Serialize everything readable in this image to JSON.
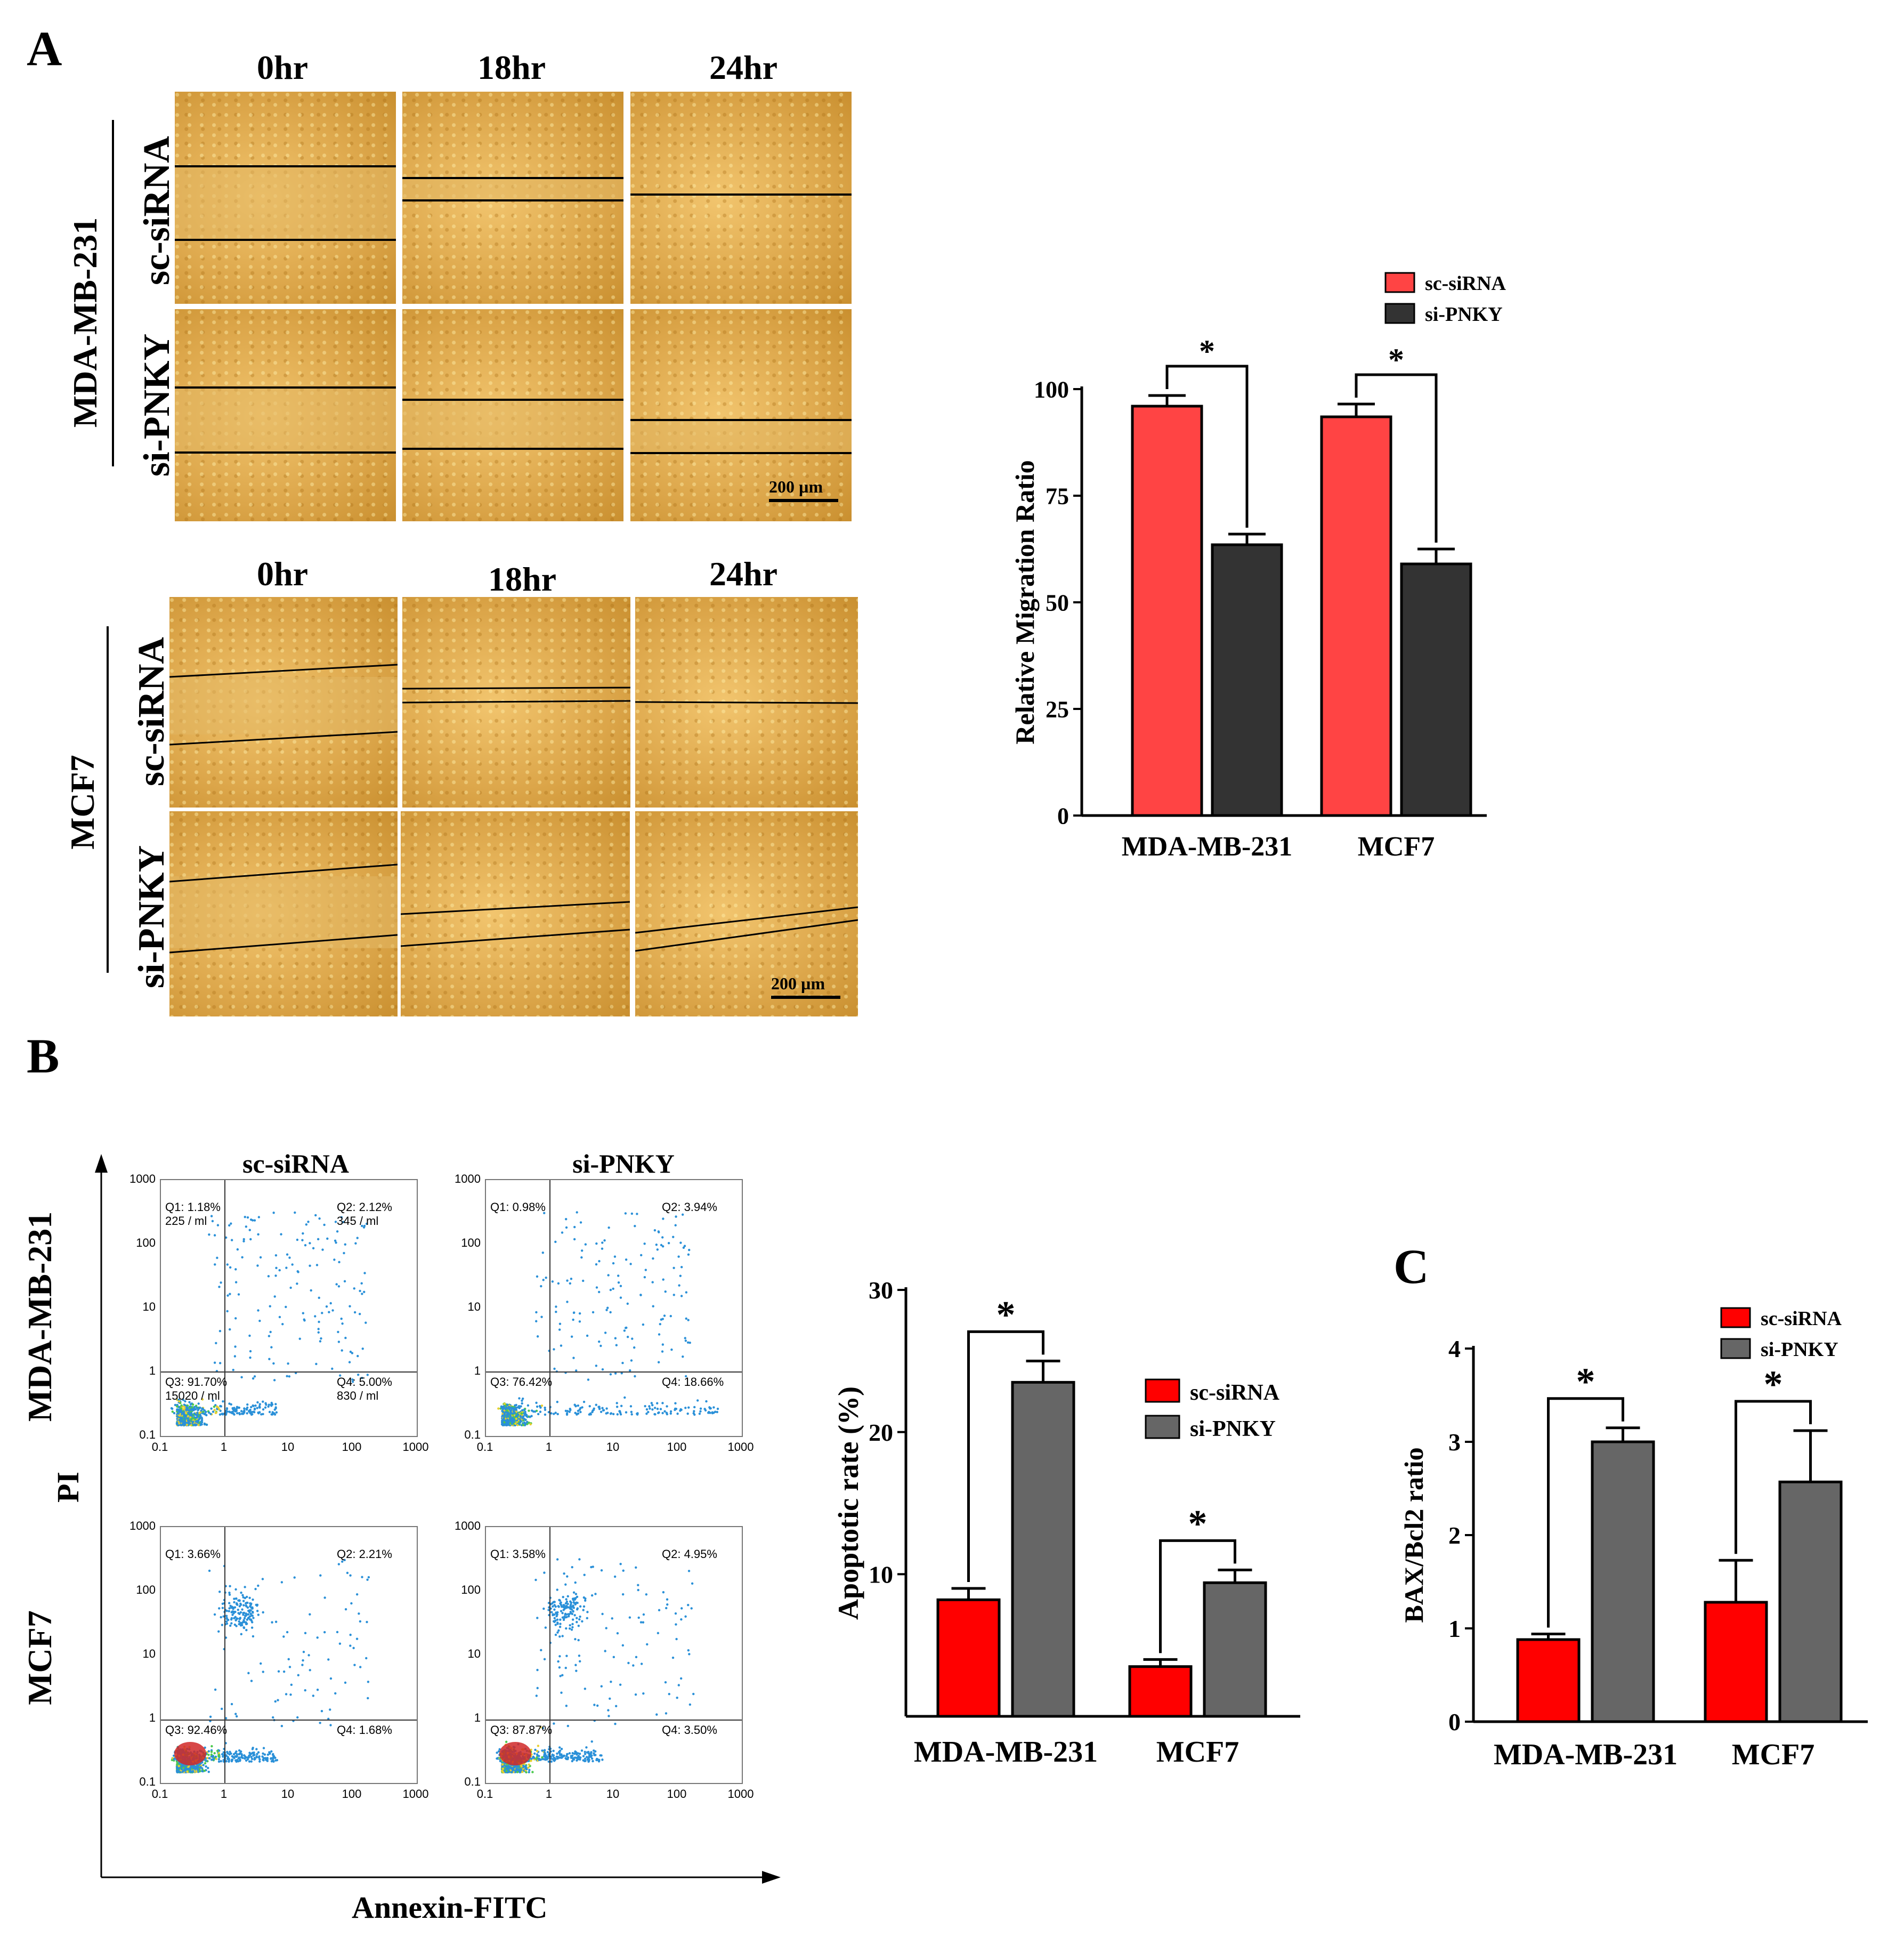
{
  "panelA": {
    "letter": "A",
    "time_labels": [
      "0hr",
      "18hr",
      "24hr"
    ],
    "cell_lines": [
      "MDA-MB-231",
      "MCF7"
    ],
    "conditions": [
      "sc-siRNA",
      "si-PNKY"
    ],
    "scale_bar": "200 µm"
  },
  "panelB": {
    "letter": "B",
    "facs": {
      "col_titles": [
        "sc-siRNA",
        "si-PNKY"
      ],
      "row_labels": [
        "MDA-MB-231",
        "MCF7"
      ],
      "y_axis": "PI",
      "x_axis": "Annexin-FITC",
      "ticks": [
        "0.1",
        "1",
        "10",
        "100",
        "1000"
      ],
      "plots": [
        {
          "q1": "Q1: 1.18%",
          "q1c": "225 / ml",
          "q2": "Q2: 2.12%",
          "q2c": "345 / ml",
          "q3": "Q3: 91.70%",
          "q3c": "15020 / ml",
          "q4": "Q4: 5.00%",
          "q4c": "830 / ml"
        },
        {
          "q1": "Q1: 0.98%",
          "q1c": "",
          "q2": "Q2: 3.94%",
          "q2c": "",
          "q3": "Q3: 76.42%",
          "q3c": "",
          "q4": "Q4: 18.66%",
          "q4c": ""
        },
        {
          "q1": "Q1: 3.66%",
          "q1c": "",
          "q2": "Q2: 2.21%",
          "q2c": "",
          "q3": "Q3: 92.46%",
          "q3c": "",
          "q4": "Q4: 1.68%",
          "q4c": ""
        },
        {
          "q1": "Q1: 3.58%",
          "q1c": "",
          "q2": "Q2: 4.95%",
          "q2c": "",
          "q3": "Q3: 87.87%",
          "q3c": "",
          "q4": "Q4: 3.50%",
          "q4c": ""
        }
      ]
    }
  },
  "panelC": {
    "letter": "C"
  },
  "colors": {
    "red_a": "#ff4444",
    "dark_a": "#333333",
    "red_b": "#ff0000",
    "gray_b": "#666666"
  },
  "chart_data": [
    {
      "id": "migration",
      "type": "bar",
      "categories": [
        "MDA-MB-231",
        "MCF7"
      ],
      "series": [
        {
          "name": "sc-siRNA",
          "values": [
            96,
            93.5
          ],
          "errors": [
            2.5,
            3
          ]
        },
        {
          "name": "si-PNKY",
          "values": [
            63.5,
            59
          ],
          "errors": [
            2.5,
            3.5
          ]
        }
      ],
      "ylabel": "Relative Migration Ratio",
      "ylim": [
        0,
        100
      ],
      "yticks": [
        0,
        25,
        50,
        75,
        100
      ],
      "significance": [
        "*",
        "*"
      ],
      "legend": "top-right"
    },
    {
      "id": "apoptotic",
      "type": "bar",
      "categories": [
        "MDA-MB-231",
        "MCF7"
      ],
      "series": [
        {
          "name": "sc-siRNA",
          "values": [
            8.2,
            3.5
          ],
          "errors": [
            0.8,
            0.5
          ]
        },
        {
          "name": "si-PNKY",
          "values": [
            23.5,
            9.4
          ],
          "errors": [
            1.5,
            0.9
          ]
        }
      ],
      "ylabel": "Apoptotic rate (%)",
      "ylim": [
        0,
        30
      ],
      "yticks": [
        10,
        20,
        30
      ],
      "significance": [
        "*",
        "*"
      ],
      "legend": "right"
    },
    {
      "id": "baxbcl2",
      "type": "bar",
      "categories": [
        "MDA-MB-231",
        "MCF7"
      ],
      "series": [
        {
          "name": "sc-siRNA",
          "values": [
            0.88,
            1.28
          ],
          "errors": [
            0.06,
            0.45
          ]
        },
        {
          "name": "si-PNKY",
          "values": [
            3.0,
            2.57
          ],
          "errors": [
            0.15,
            0.55
          ]
        }
      ],
      "ylabel": "BAX/Bcl2 ratio",
      "ylim": [
        0,
        4
      ],
      "yticks": [
        0,
        1,
        2,
        3,
        4
      ],
      "significance": [
        "*",
        "*"
      ],
      "legend": "top-right"
    }
  ]
}
